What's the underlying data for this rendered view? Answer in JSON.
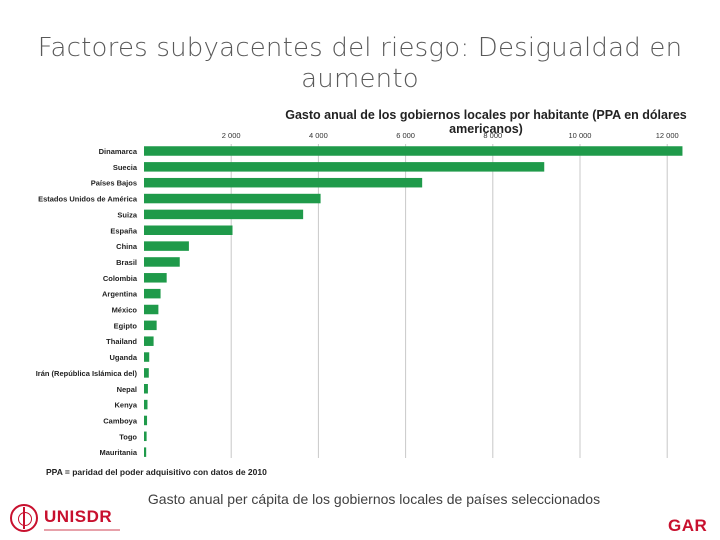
{
  "slide": {
    "title": "Factores subyacentes del riesgo: Desigualdad en aumento",
    "caption": "Gasto anual per cápita de los gobiernos locales de países seleccionados",
    "footnote": "PPA = paridad del poder adquisitivo con datos de 2010"
  },
  "logos": {
    "left": "UNISDR",
    "right": "GAR"
  },
  "colors": {
    "bar": "#1f9a4a",
    "grid": "#c8c8c8",
    "logo": "#c8102e"
  },
  "chart_data": {
    "type": "bar",
    "orientation": "horizontal",
    "title": "Gasto anual de los gobiernos locales por habitante (PPA en dólares americanos)",
    "xaxis_position": "top",
    "xlim": [
      0,
      12500
    ],
    "grid": true,
    "ticks": [
      2000,
      4000,
      6000,
      8000,
      10000,
      12000
    ],
    "tick_labels": [
      "2 000",
      "4 000",
      "6 000",
      "8 000",
      "10 000",
      "12 000"
    ],
    "categories": [
      "Dinamarca",
      "Suecia",
      "Países Bajos",
      "Estados Unidos de América",
      "Suiza",
      "España",
      "China",
      "Brasil",
      "Colombia",
      "Argentina",
      "México",
      "Egipto",
      "Thailand",
      "Uganda",
      "Irán (República Islámica del)",
      "Nepal",
      "Kenya",
      "Camboya",
      "Togo",
      "Mauritania"
    ],
    "values": [
      12350,
      9180,
      6380,
      4050,
      3650,
      2030,
      1030,
      820,
      520,
      380,
      330,
      290,
      220,
      120,
      110,
      90,
      80,
      70,
      60,
      50
    ]
  }
}
